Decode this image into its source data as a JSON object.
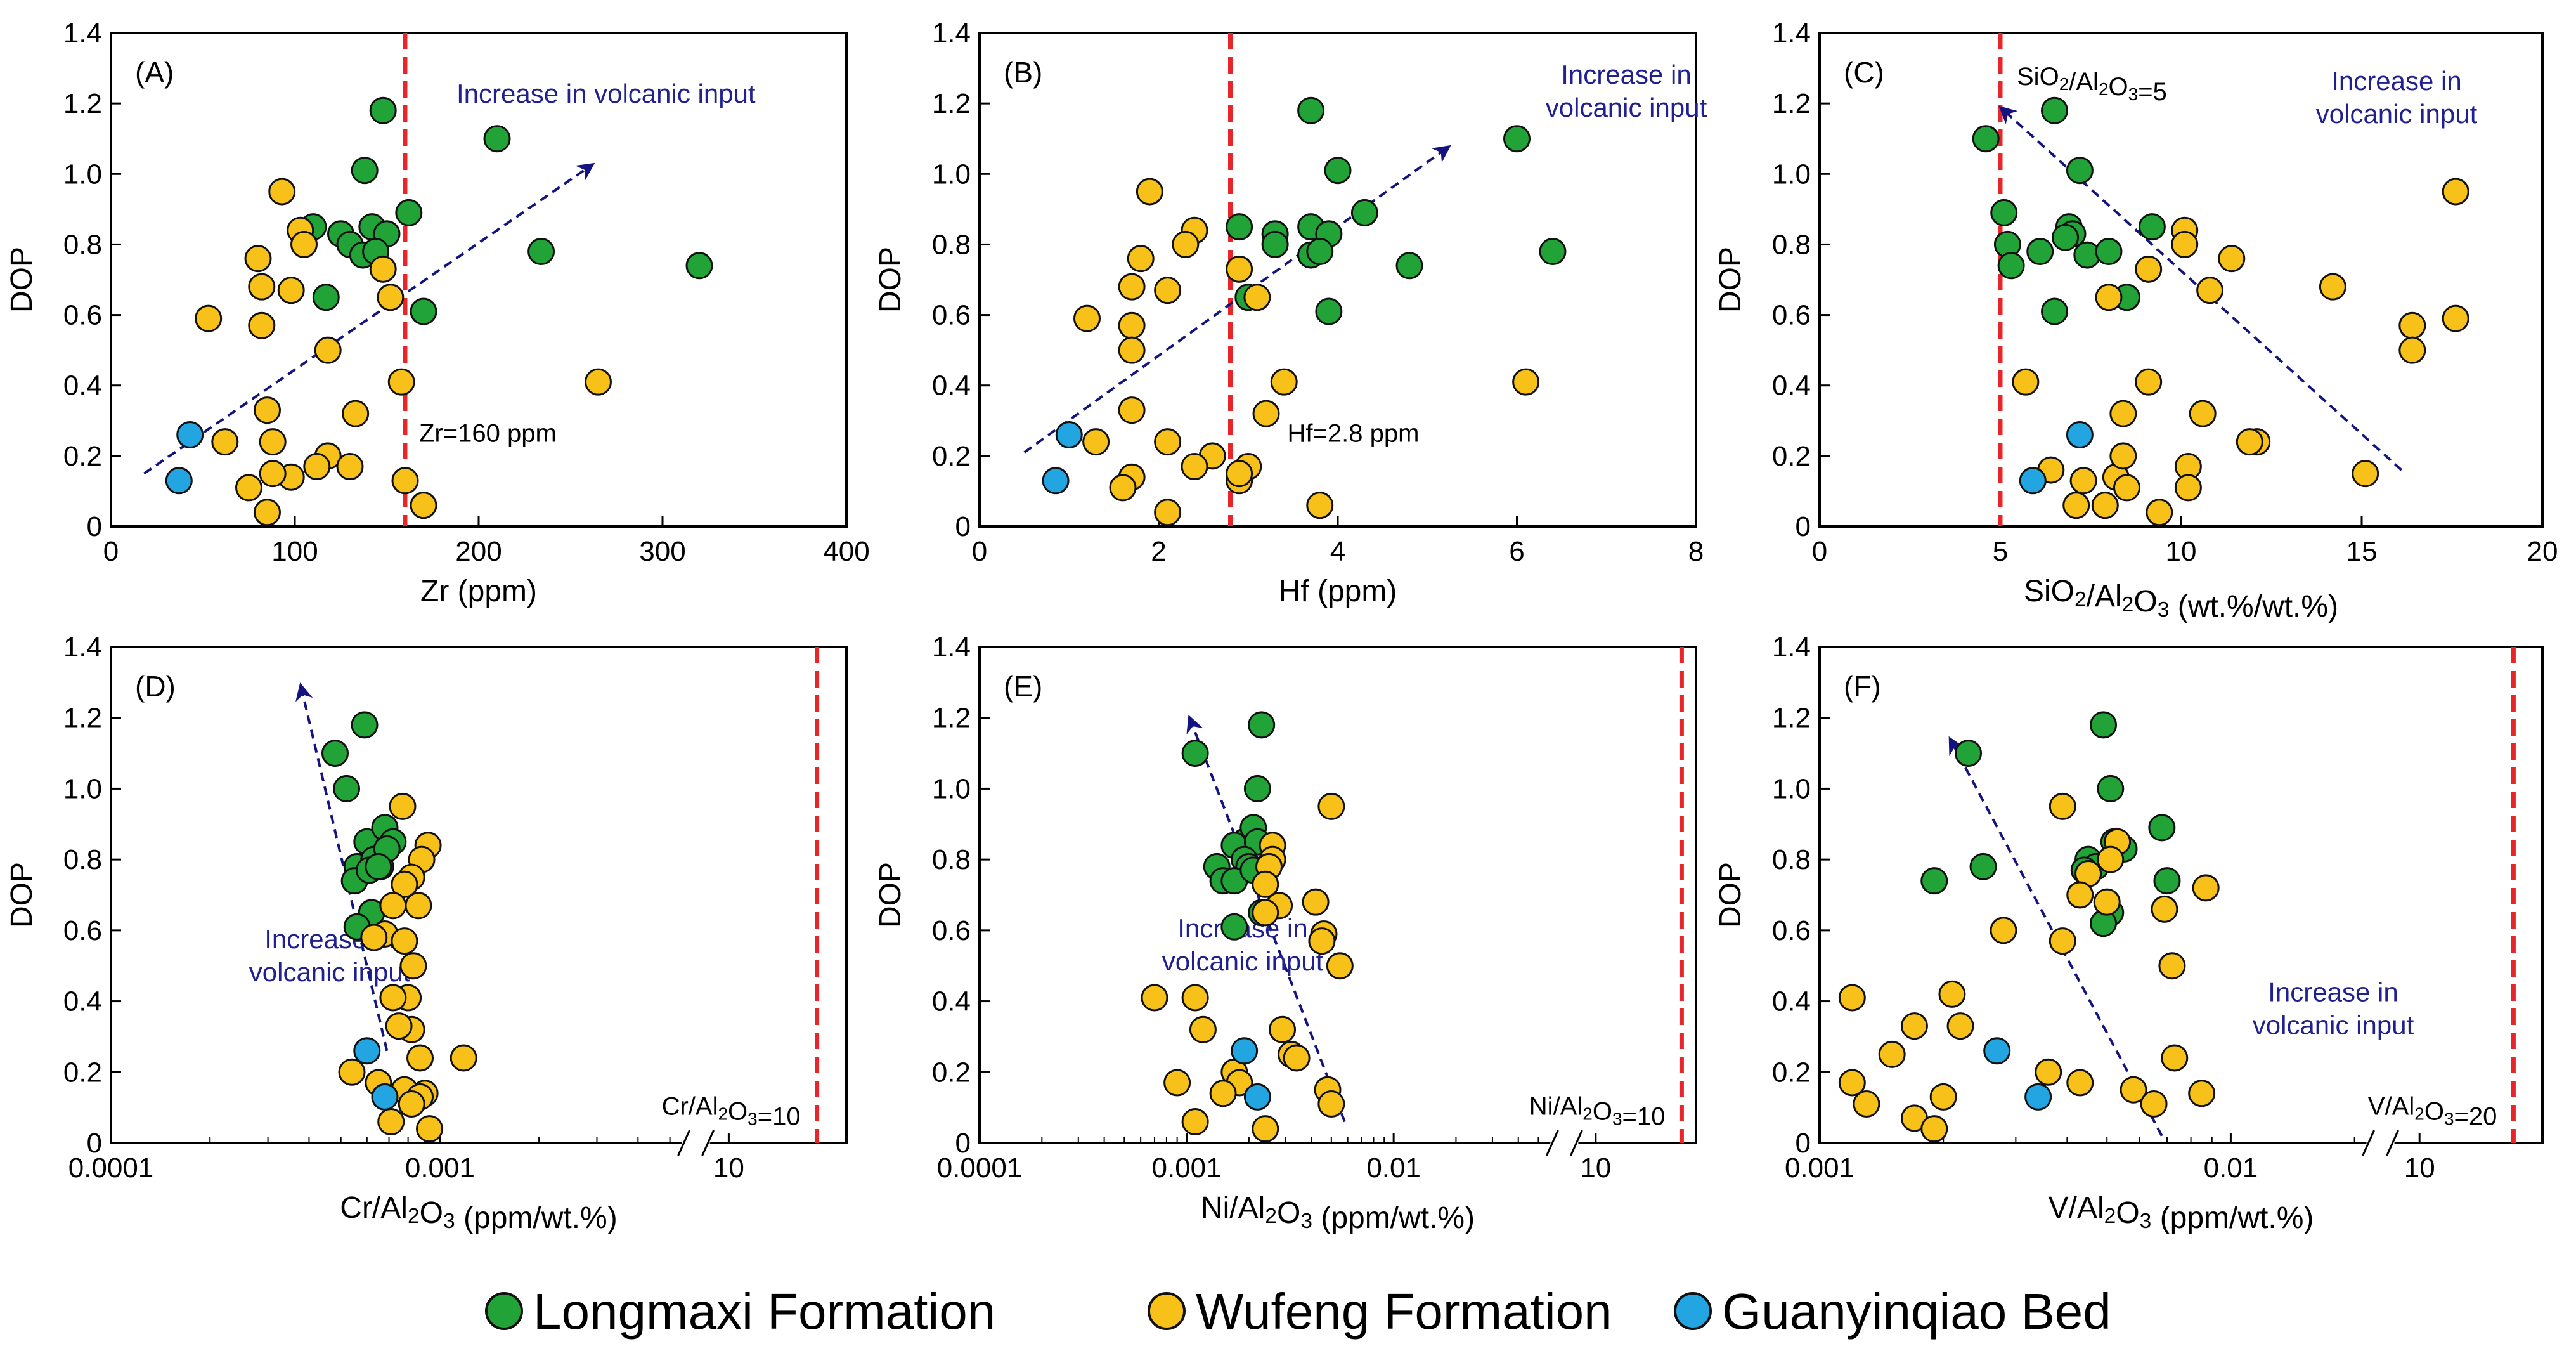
{
  "chart_data": [
    {
      "type": "scatter",
      "panel_label": "(A)",
      "xscale": "linear",
      "xlabel": "Zr (ppm)",
      "ylabel": "DOP",
      "xlim": [
        0,
        400
      ],
      "ylim": [
        0,
        1.4
      ],
      "xticks": [
        0,
        100,
        200,
        300,
        400
      ],
      "xtick_labels": [
        "0",
        "100",
        "200",
        "300",
        "400"
      ],
      "threshold": {
        "x": 160,
        "label": "Zr=160 ppm"
      },
      "annotation": [
        "Increase in volcanic input"
      ],
      "trend_arrow": {
        "from": [
          18,
          0.15
        ],
        "to": [
          260,
          1.02
        ]
      },
      "series": [
        {
          "name": "Longmaxi Formation",
          "x": [
            148,
            210,
            138,
            162,
            110,
            125,
            142,
            150,
            130,
            137,
            144,
            234,
            320,
            117,
            170
          ],
          "y": [
            1.18,
            1.1,
            1.01,
            0.89,
            0.85,
            0.83,
            0.85,
            0.83,
            0.8,
            0.77,
            0.78,
            0.78,
            0.74,
            0.65,
            0.61
          ]
        },
        {
          "name": "Wufeng Formation",
          "x": [
            93,
            103,
            80,
            105,
            148,
            82,
            98,
            152,
            53,
            82,
            118,
            158,
            265,
            133,
            85,
            88,
            62,
            98,
            118,
            112,
            130,
            160,
            75,
            88,
            170,
            85
          ],
          "y": [
            0.95,
            0.84,
            0.76,
            0.8,
            0.73,
            0.68,
            0.67,
            0.65,
            0.59,
            0.57,
            0.5,
            0.41,
            0.41,
            0.32,
            0.33,
            0.24,
            0.24,
            0.14,
            0.2,
            0.17,
            0.17,
            0.13,
            0.11,
            0.15,
            0.06,
            0.04
          ]
        },
        {
          "name": "Guanyinqiao Bed",
          "x": [
            43,
            37
          ],
          "y": [
            0.26,
            0.13
          ]
        }
      ]
    },
    {
      "type": "scatter",
      "panel_label": "(B)",
      "xscale": "linear",
      "xlabel": "Hf (ppm)",
      "ylabel": "DOP",
      "xlim": [
        0,
        8
      ],
      "ylim": [
        0,
        1.4
      ],
      "xticks": [
        0,
        2,
        4,
        6,
        8
      ],
      "xtick_labels": [
        "0",
        "2",
        "4",
        "6",
        "8"
      ],
      "threshold": {
        "x": 2.8,
        "label": "Hf=2.8 ppm"
      },
      "annotation": [
        "Increase in",
        "volcanic input"
      ],
      "trend_arrow": {
        "from": [
          0.5,
          0.21
        ],
        "to": [
          5.2,
          1.07
        ]
      },
      "series": [
        {
          "name": "Longmaxi Formation",
          "x": [
            3.7,
            6.0,
            4.0,
            4.3,
            2.9,
            3.3,
            3.7,
            3.9,
            3.3,
            3.7,
            3.8,
            4.8,
            6.4,
            3.0,
            3.9
          ],
          "y": [
            1.18,
            1.1,
            1.01,
            0.89,
            0.85,
            0.83,
            0.85,
            0.83,
            0.8,
            0.77,
            0.78,
            0.74,
            0.78,
            0.65,
            0.61
          ]
        },
        {
          "name": "Wufeng Formation",
          "x": [
            1.9,
            2.4,
            1.8,
            2.3,
            2.9,
            1.7,
            2.1,
            3.1,
            1.2,
            1.7,
            1.7,
            3.4,
            6.1,
            3.2,
            1.7,
            1.3,
            2.1,
            1.7,
            2.6,
            3.0,
            2.4,
            2.9,
            1.6,
            2.9,
            3.8,
            2.1
          ],
          "y": [
            0.95,
            0.84,
            0.76,
            0.8,
            0.73,
            0.68,
            0.67,
            0.65,
            0.59,
            0.57,
            0.5,
            0.41,
            0.41,
            0.32,
            0.33,
            0.24,
            0.24,
            0.14,
            0.2,
            0.17,
            0.17,
            0.13,
            0.11,
            0.15,
            0.06,
            0.04
          ]
        },
        {
          "name": "Guanyinqiao Bed",
          "x": [
            1.0,
            0.85
          ],
          "y": [
            0.26,
            0.13
          ]
        }
      ]
    },
    {
      "type": "scatter",
      "panel_label": "(C)",
      "xscale": "linear",
      "xlabel": "SiO2/Al2O3 (wt.%/wt.%)",
      "ylabel": "DOP",
      "xlim": [
        0,
        20
      ],
      "ylim": [
        0,
        1.4
      ],
      "xticks": [
        0,
        5,
        10,
        15,
        20
      ],
      "xtick_labels": [
        "0",
        "5",
        "10",
        "15",
        "20"
      ],
      "threshold": {
        "x": 5,
        "label": "SiO2/Al2O3=5"
      },
      "annotation": [
        "Increase in",
        "volcanic input"
      ],
      "trend_arrow": {
        "from": [
          16.1,
          0.16
        ],
        "to": [
          5.1,
          1.18
        ]
      },
      "series": [
        {
          "name": "Longmaxi Formation",
          "x": [
            6.5,
            4.6,
            7.2,
            5.1,
            6.9,
            7.0,
            9.2,
            5.2,
            5.3,
            6.8,
            7.4,
            6.1,
            8.0,
            6.5,
            8.5
          ],
          "y": [
            1.18,
            1.1,
            1.01,
            0.89,
            0.85,
            0.83,
            0.85,
            0.8,
            0.74,
            0.82,
            0.77,
            0.78,
            0.78,
            0.61,
            0.65
          ]
        },
        {
          "name": "Wufeng Formation",
          "x": [
            17.6,
            10.1,
            11.4,
            9.1,
            10.1,
            10.8,
            14.2,
            8.0,
            16.4,
            17.6,
            16.4,
            5.7,
            9.1,
            8.4,
            10.6,
            12.1,
            11.9,
            8.2,
            6.4,
            8.4,
            10.2,
            15.1,
            7.9,
            8.5,
            7.3,
            10.2,
            9.4,
            7.1
          ],
          "y": [
            0.95,
            0.84,
            0.76,
            0.73,
            0.8,
            0.67,
            0.68,
            0.65,
            0.57,
            0.59,
            0.5,
            0.41,
            0.41,
            0.32,
            0.32,
            0.24,
            0.24,
            0.14,
            0.16,
            0.2,
            0.17,
            0.15,
            0.06,
            0.11,
            0.13,
            0.11,
            0.04,
            0.06
          ]
        },
        {
          "name": "Guanyinqiao Bed",
          "x": [
            7.2,
            5.9
          ],
          "y": [
            0.26,
            0.13
          ]
        }
      ]
    },
    {
      "type": "scatter",
      "panel_label": "(D)",
      "xscale": "log-broken",
      "xlabel": "Cr/Al2O3 (ppm/wt.%)",
      "ylabel": "DOP",
      "xlim": [
        0.0001,
        0.005
      ],
      "ylim": [
        0,
        1.4
      ],
      "xticks": [
        0.0001,
        0.001
      ],
      "xtick_labels": [
        "0.0001",
        "0.001"
      ],
      "break_label": "10",
      "threshold": {
        "x": 10,
        "label": "Cr/Al2O3=10"
      },
      "annotation": [
        "Increase in",
        "volcanic input"
      ],
      "trend_arrow": {
        "from": [
          0.00069,
          0.26
        ],
        "to": [
          0.00038,
          1.28
        ]
      },
      "series": [
        {
          "name": "Longmaxi Formation",
          "x": [
            0.00059,
            0.00048,
            0.00052,
            0.0006,
            0.00068,
            0.00072,
            0.00056,
            0.00063,
            0.00066,
            0.00069,
            0.00055,
            0.00061,
            0.00062,
            0.00065,
            0.00056
          ],
          "y": [
            1.18,
            1.1,
            1.0,
            0.85,
            0.89,
            0.85,
            0.78,
            0.8,
            0.78,
            0.83,
            0.74,
            0.77,
            0.65,
            0.78,
            0.61
          ]
        },
        {
          "name": "Wufeng Formation",
          "x": [
            0.00077,
            0.00092,
            0.00088,
            0.00082,
            0.00078,
            0.00072,
            0.00086,
            0.00068,
            0.00063,
            0.00078,
            0.00083,
            0.0008,
            0.00072,
            0.00082,
            0.00087,
            0.00118,
            0.00075,
            0.00054,
            0.00065,
            0.00078,
            0.0009,
            0.00087,
            0.00082,
            0.00071,
            0.00093
          ],
          "y": [
            0.95,
            0.84,
            0.8,
            0.75,
            0.73,
            0.67,
            0.67,
            0.59,
            0.58,
            0.57,
            0.5,
            0.41,
            0.41,
            0.32,
            0.24,
            0.24,
            0.33,
            0.2,
            0.17,
            0.15,
            0.14,
            0.13,
            0.11,
            0.06,
            0.04
          ]
        },
        {
          "name": "Guanyinqiao Bed",
          "x": [
            0.0006,
            0.00068
          ],
          "y": [
            0.26,
            0.13
          ]
        }
      ]
    },
    {
      "type": "scatter",
      "panel_label": "(E)",
      "xscale": "log-broken",
      "xlabel": "Ni/Al2O3 (ppm/wt.%)",
      "ylabel": "DOP",
      "xlim": [
        0.0001,
        0.05
      ],
      "ylim": [
        0,
        1.4
      ],
      "xticks": [
        0.0001,
        0.001,
        0.01
      ],
      "xtick_labels": [
        "0.0001",
        "0.001",
        "0.01"
      ],
      "break_label": "10",
      "threshold": {
        "x": 10,
        "label": "Ni/Al2O3=10"
      },
      "annotation": [
        "Increase in",
        "volcanic input"
      ],
      "trend_arrow": {
        "from": [
          0.0058,
          0.06
        ],
        "to": [
          0.00105,
          1.19
        ]
      },
      "series": [
        {
          "name": "Longmaxi Formation",
          "x": [
            0.0023,
            0.0011,
            0.0022,
            0.0019,
            0.0021,
            0.0017,
            0.0022,
            0.0019,
            0.002,
            0.0014,
            0.0015,
            0.0017,
            0.0021,
            0.0023,
            0.0017
          ],
          "y": [
            1.18,
            1.1,
            1.0,
            0.85,
            0.89,
            0.84,
            0.85,
            0.8,
            0.78,
            0.78,
            0.74,
            0.74,
            0.77,
            0.65,
            0.61
          ]
        },
        {
          "name": "Wufeng Formation",
          "x": [
            0.005,
            0.0026,
            0.0026,
            0.0025,
            0.0024,
            0.0028,
            0.0024,
            0.0042,
            0.0046,
            0.0045,
            0.0055,
            0.0007,
            0.0011,
            0.0012,
            0.0029,
            0.0032,
            0.0034,
            0.0017,
            0.0018,
            0.0048,
            0.0015,
            0.005,
            0.0009,
            0.0011,
            0.0024
          ],
          "y": [
            0.95,
            0.84,
            0.8,
            0.78,
            0.73,
            0.67,
            0.65,
            0.68,
            0.59,
            0.57,
            0.5,
            0.41,
            0.41,
            0.32,
            0.32,
            0.25,
            0.24,
            0.2,
            0.17,
            0.15,
            0.14,
            0.11,
            0.17,
            0.06,
            0.04
          ]
        },
        {
          "name": "Guanyinqiao Bed",
          "x": [
            0.0019,
            0.0022
          ],
          "y": [
            0.26,
            0.13
          ]
        }
      ]
    },
    {
      "type": "scatter",
      "panel_label": "(F)",
      "xscale": "log-broken",
      "xlabel": "V/Al2O3 (ppm/wt.%)",
      "ylabel": "DOP",
      "xlim": [
        0.001,
        0.02
      ],
      "ylim": [
        0,
        1.4
      ],
      "xticks": [
        0.001,
        0.01
      ],
      "xtick_labels": [
        "0.001",
        "0.01"
      ],
      "break_label": "10",
      "threshold": {
        "x": 20,
        "label": "V/Al2O3=20"
      },
      "annotation": [
        "Increase in",
        "volcanic input"
      ],
      "trend_arrow": {
        "from": [
          0.0068,
          0.02
        ],
        "to": [
          0.0021,
          1.13
        ]
      },
      "series": [
        {
          "name": "Longmaxi Formation",
          "x": [
            0.0049,
            0.0023,
            0.0051,
            0.0068,
            0.0052,
            0.0055,
            0.0045,
            0.0047,
            0.0025,
            0.007,
            0.0019,
            0.0044,
            0.0051,
            0.0049
          ],
          "y": [
            1.18,
            1.1,
            1.0,
            0.89,
            0.85,
            0.83,
            0.8,
            0.78,
            0.78,
            0.74,
            0.74,
            0.77,
            0.65,
            0.62
          ]
        },
        {
          "name": "Wufeng Formation",
          "x": [
            0.0039,
            0.0053,
            0.0051,
            0.0045,
            0.0087,
            0.005,
            0.0043,
            0.0028,
            0.0069,
            0.0039,
            0.0072,
            0.0012,
            0.0021,
            0.0017,
            0.0022,
            0.0015,
            0.0073,
            0.0036,
            0.0043,
            0.0058,
            0.002,
            0.0012,
            0.0085,
            0.0065,
            0.0013,
            0.0017,
            0.0019
          ],
          "y": [
            0.95,
            0.85,
            0.8,
            0.76,
            0.72,
            0.68,
            0.7,
            0.6,
            0.66,
            0.57,
            0.5,
            0.41,
            0.42,
            0.33,
            0.33,
            0.25,
            0.24,
            0.2,
            0.17,
            0.15,
            0.13,
            0.17,
            0.14,
            0.11,
            0.11,
            0.07,
            0.04
          ]
        },
        {
          "name": "Guanyinqiao Bed",
          "x": [
            0.0027,
            0.0034
          ],
          "y": [
            0.26,
            0.13
          ]
        }
      ]
    }
  ],
  "colors": {
    "Longmaxi Formation": "#21a337",
    "Wufeng Formation": "#f7c11a",
    "Guanyinqiao Bed": "#22a5e0",
    "threshold": "#e8262a",
    "arrow": "#141480"
  },
  "legend": [
    {
      "label": "Longmaxi Formation"
    },
    {
      "label": "Wufeng Formation"
    },
    {
      "label": "Guanyinqiao Bed"
    }
  ]
}
